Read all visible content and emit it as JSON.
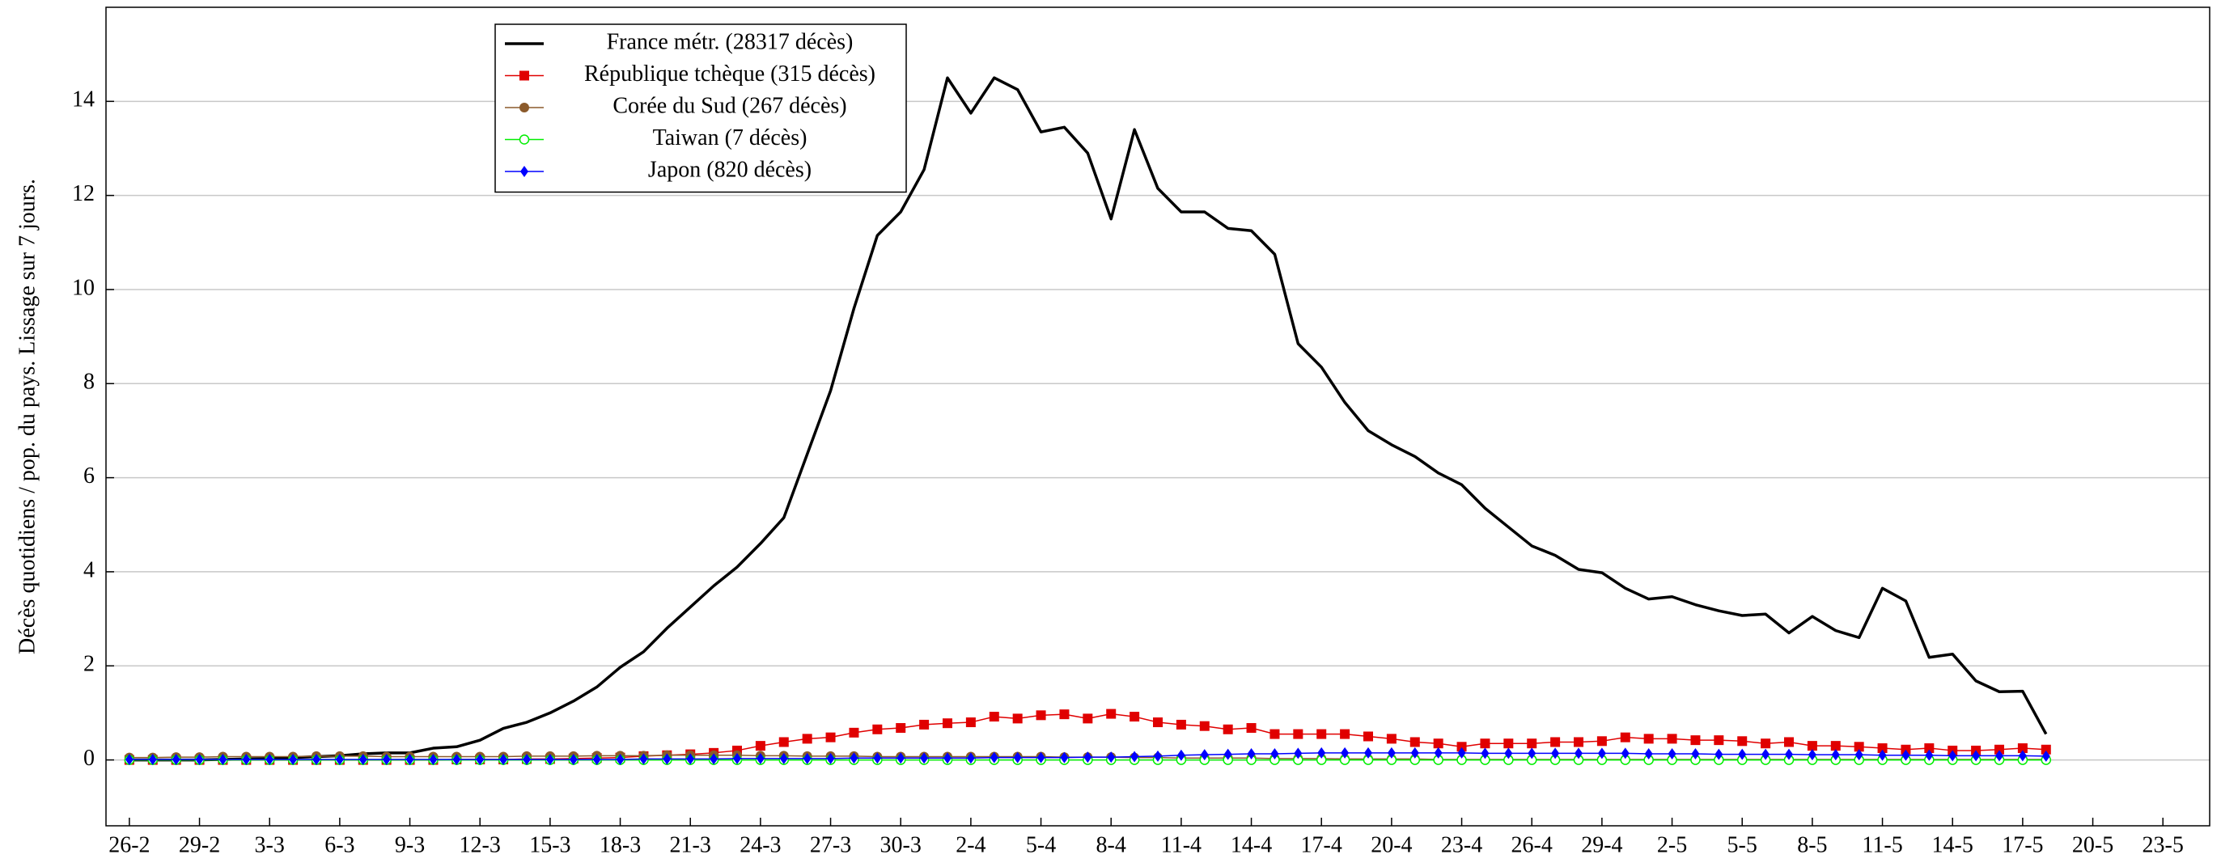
{
  "chart_data": {
    "type": "line",
    "ylabel": "Décès quotidiens / pop. du pays. Lissage sur 7 jours.",
    "categories": [
      "26-2",
      null,
      null,
      "29-2",
      null,
      null,
      "3-3",
      null,
      null,
      "6-3",
      null,
      null,
      "9-3",
      null,
      null,
      "12-3",
      null,
      null,
      "15-3",
      null,
      null,
      "18-3",
      null,
      null,
      "21-3",
      null,
      null,
      "24-3",
      null,
      null,
      "27-3",
      null,
      null,
      "30-3",
      null,
      null,
      "2-4",
      null,
      null,
      "5-4",
      null,
      null,
      "8-4",
      null,
      null,
      "11-4",
      null,
      null,
      "14-4",
      null,
      null,
      "17-4",
      null,
      null,
      "20-4",
      null,
      null,
      "23-4",
      null,
      null,
      "26-4",
      null,
      null,
      "29-4",
      null,
      null,
      "2-5",
      null,
      null,
      "5-5",
      null,
      null,
      "8-5",
      null,
      null,
      "11-5",
      null,
      null,
      "14-5",
      null,
      null,
      "17-5",
      null,
      null,
      "20-5",
      null,
      null,
      "23-5",
      null,
      null
    ],
    "ylim": [
      -1.4,
      16
    ],
    "yticks": [
      0,
      2,
      4,
      6,
      8,
      10,
      12,
      14
    ],
    "grid": true,
    "series": [
      {
        "name": "France métr. (28317 décès)",
        "color": "#000000",
        "marker": "none",
        "values": [
          0,
          0,
          0,
          0,
          0.01,
          0.02,
          0.03,
          0.05,
          0.07,
          0.09,
          0.13,
          0.15,
          0.15,
          0.25,
          0.28,
          0.42,
          0.67,
          0.8,
          1.0,
          1.25,
          1.55,
          1.97,
          2.3,
          2.8,
          3.25,
          3.7,
          4.1,
          4.6,
          5.15,
          6.5,
          7.85,
          9.6,
          11.15,
          11.65,
          12.55,
          14.5,
          13.75,
          14.5,
          14.25,
          13.35,
          13.45,
          12.9,
          11.5,
          13.4,
          12.15,
          11.65,
          11.65,
          11.3,
          11.25,
          10.75,
          8.85,
          8.35,
          7.6,
          7.0,
          6.7,
          6.45,
          6.1,
          5.85,
          5.35,
          4.95,
          4.55,
          4.35,
          4.05,
          3.98,
          3.65,
          3.42,
          3.47,
          3.3,
          3.17,
          3.07,
          3.1,
          2.7,
          3.05,
          2.75,
          2.6,
          3.65,
          3.38,
          2.18,
          2.25,
          1.68,
          1.45,
          1.46,
          0.55,
          null,
          null,
          null,
          null,
          null,
          null,
          null
        ]
      },
      {
        "name": "République tchèque (315 décès)",
        "color": "#e00000",
        "marker": "square",
        "values": [
          0,
          0,
          0,
          0,
          0,
          0,
          0,
          0,
          0,
          0,
          0,
          0,
          0,
          0,
          0.01,
          0.01,
          0.01,
          0.02,
          0.02,
          0.03,
          0.04,
          0.05,
          0.08,
          0.1,
          0.12,
          0.15,
          0.2,
          0.3,
          0.38,
          0.45,
          0.48,
          0.58,
          0.65,
          0.68,
          0.75,
          0.78,
          0.8,
          0.92,
          0.88,
          0.95,
          0.97,
          0.88,
          0.98,
          0.92,
          0.8,
          0.75,
          0.72,
          0.65,
          0.68,
          0.55,
          0.55,
          0.55,
          0.55,
          0.5,
          0.45,
          0.38,
          0.35,
          0.28,
          0.35,
          0.35,
          0.35,
          0.38,
          0.38,
          0.4,
          0.48,
          0.45,
          0.45,
          0.42,
          0.42,
          0.4,
          0.35,
          0.38,
          0.3,
          0.3,
          0.28,
          0.25,
          0.22,
          0.25,
          0.2,
          0.2,
          0.22,
          0.25,
          0.22,
          null,
          null,
          null,
          null,
          null,
          null,
          null
        ]
      },
      {
        "name": "Corée du Sud (267 décès)",
        "color": "#8b5a2b",
        "marker": "circle",
        "values": [
          0.05,
          0.05,
          0.06,
          0.06,
          0.07,
          0.07,
          0.07,
          0.07,
          0.08,
          0.08,
          0.08,
          0.07,
          0.07,
          0.07,
          0.07,
          0.07,
          0.07,
          0.08,
          0.08,
          0.08,
          0.09,
          0.09,
          0.09,
          0.1,
          0.1,
          0.1,
          0.1,
          0.09,
          0.09,
          0.08,
          0.08,
          0.08,
          0.07,
          0.07,
          0.07,
          0.07,
          0.07,
          0.07,
          0.07,
          0.07,
          0.06,
          0.06,
          0.06,
          0.05,
          0.05,
          0.04,
          0.04,
          0.04,
          0.04,
          0.03,
          0.03,
          0.03,
          0.02,
          0.02,
          0.02,
          0.02,
          0.01,
          0.01,
          0.01,
          0.01,
          0.01,
          0.01,
          0.01,
          0.01,
          0.01,
          0.01,
          0.01,
          0.01,
          0.01,
          0.01,
          0.01,
          0.01,
          0.01,
          0.01,
          0.01,
          0.01,
          0.01,
          0.01,
          0.01,
          0.01,
          0.01,
          0.01,
          0.01,
          null,
          null,
          null,
          null,
          null,
          null,
          null
        ]
      },
      {
        "name": "Taiwan (7 décès)",
        "color": "#00ee00",
        "marker": "open-circle",
        "values": [
          0,
          0,
          0,
          0,
          0,
          0,
          0,
          0,
          0,
          0,
          0,
          0,
          0,
          0,
          0,
          0,
          0,
          0,
          0,
          0,
          0,
          0,
          0,
          0,
          0,
          0,
          0,
          0,
          0,
          0,
          0,
          0,
          0,
          0,
          0,
          0,
          0,
          0,
          0,
          0,
          0,
          0,
          0,
          0,
          0,
          0,
          0,
          0,
          0,
          0,
          0,
          0,
          0,
          0,
          0,
          0,
          0,
          0,
          0,
          0,
          0,
          0,
          0,
          0,
          0,
          0,
          0,
          0,
          0,
          0,
          0,
          0,
          0,
          0,
          0,
          0,
          0,
          0,
          0,
          0,
          0,
          0,
          0,
          null,
          null,
          null,
          null,
          null,
          null,
          null
        ]
      },
      {
        "name": "Japon (820 décès)",
        "color": "#0000ff",
        "marker": "diamond",
        "values": [
          0.01,
          0.01,
          0.01,
          0.01,
          0.01,
          0.01,
          0.01,
          0.01,
          0.01,
          0.01,
          0.01,
          0.01,
          0.01,
          0.01,
          0.01,
          0.01,
          0.01,
          0.01,
          0.01,
          0.01,
          0.01,
          0.01,
          0.02,
          0.02,
          0.02,
          0.02,
          0.03,
          0.03,
          0.03,
          0.03,
          0.03,
          0.04,
          0.04,
          0.04,
          0.04,
          0.04,
          0.04,
          0.05,
          0.05,
          0.05,
          0.05,
          0.06,
          0.06,
          0.07,
          0.08,
          0.1,
          0.11,
          0.12,
          0.13,
          0.13,
          0.14,
          0.15,
          0.15,
          0.15,
          0.15,
          0.15,
          0.15,
          0.15,
          0.14,
          0.14,
          0.14,
          0.14,
          0.14,
          0.14,
          0.14,
          0.13,
          0.13,
          0.13,
          0.12,
          0.12,
          0.12,
          0.12,
          0.11,
          0.11,
          0.11,
          0.1,
          0.1,
          0.1,
          0.09,
          0.09,
          0.09,
          0.09,
          0.08,
          null,
          null,
          null,
          null,
          null,
          null,
          null
        ]
      }
    ]
  }
}
